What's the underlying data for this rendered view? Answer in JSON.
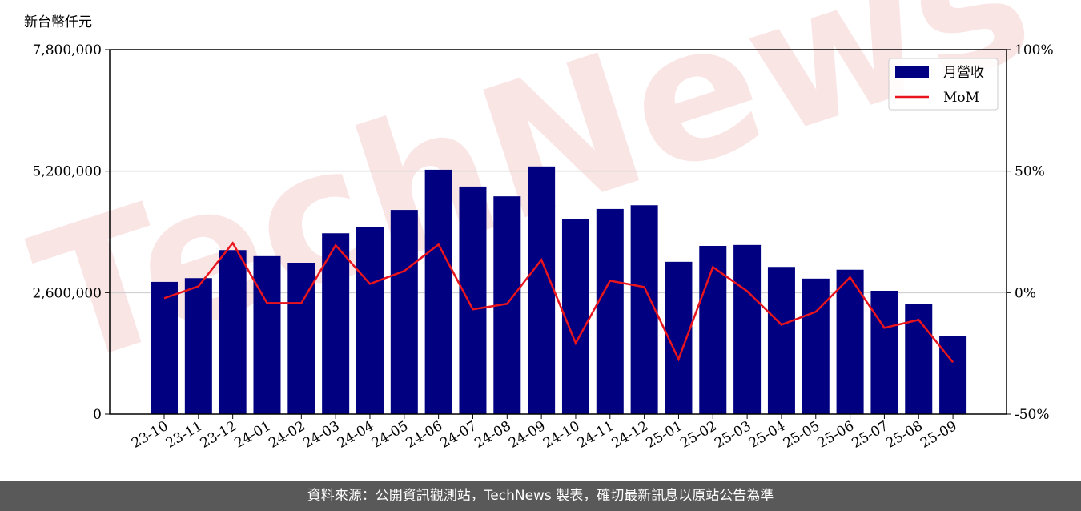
{
  "chart_data": {
    "type": "bar_line",
    "y_label": "新台幣仟元",
    "watermark": "TechNews",
    "categories": [
      "23-10",
      "23-11",
      "23-12",
      "24-01",
      "24-02",
      "24-03",
      "24-04",
      "24-05",
      "24-06",
      "24-07",
      "24-08",
      "24-09",
      "24-10",
      "24-11",
      "24-12",
      "25-01",
      "25-02",
      "25-03",
      "25-04",
      "25-05",
      "25-06",
      "25-07",
      "25-08",
      "25-09"
    ],
    "series": [
      {
        "name": "月營收",
        "type": "bar",
        "color": "#000080",
        "values": [
          2830000,
          2910000,
          3510000,
          3380000,
          3240000,
          3870000,
          4010000,
          4370000,
          5230000,
          4870000,
          4660000,
          5300000,
          4180000,
          4390000,
          4470000,
          3260000,
          3600000,
          3620000,
          3150000,
          2900000,
          3090000,
          2640000,
          2350000,
          1680000
        ]
      },
      {
        "name": "MoM",
        "type": "line",
        "color": "#e8141e",
        "axis": "y2",
        "values": [
          -2.3,
          2.6,
          20.4,
          -4.3,
          -4.3,
          19.5,
          3.6,
          8.9,
          19.8,
          -6.9,
          -4.6,
          13.5,
          -20.8,
          4.9,
          2.3,
          -27.4,
          10.5,
          0.6,
          -13.2,
          -7.9,
          6.3,
          -14.5,
          -11.2,
          -28.7
        ]
      }
    ],
    "ylim": [
      0,
      7800000
    ],
    "yticks": [
      0,
      {
        "value": 2600000,
        "label": "2,600,000"
      },
      {
        "value": 5200000,
        "label": "5,200,000"
      },
      {
        "value": 7800000,
        "label": "7,800,000"
      }
    ],
    "y2lim": [
      -50,
      100
    ],
    "y2ticks": [
      {
        "value": -50,
        "label": "-50%"
      },
      {
        "value": 0,
        "label": "0%"
      },
      {
        "value": 50,
        "label": "50%"
      },
      {
        "value": 100,
        "label": "100%"
      }
    ],
    "grid": true,
    "legend": "upper right",
    "footer": "資料來源：公開資訊觀測站，TechNews 製表，確切最新訊息以原站公告為準"
  }
}
